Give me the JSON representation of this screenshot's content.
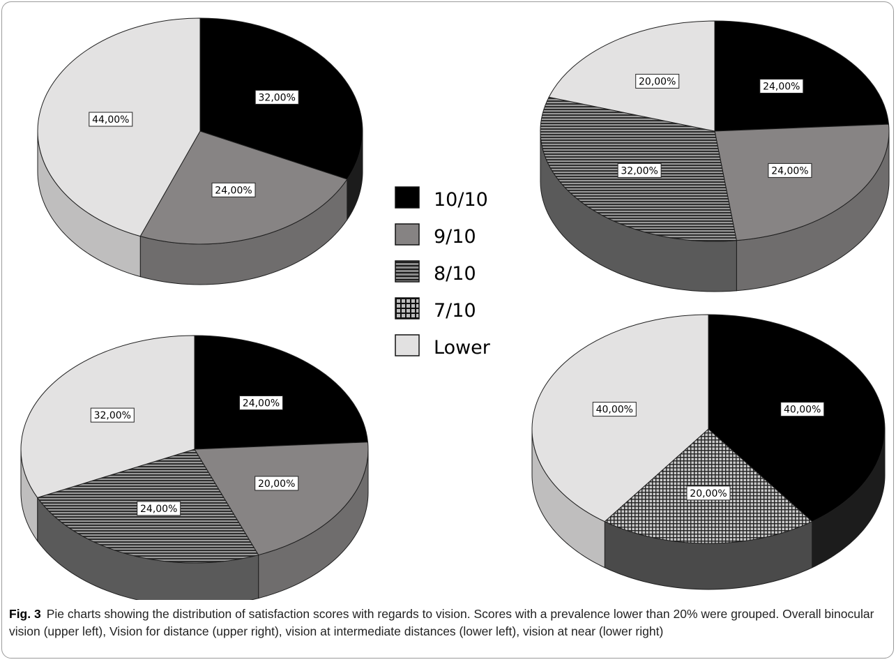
{
  "legend": {
    "items": [
      {
        "label": "10/10",
        "fill": "#000000",
        "pattern": "solid"
      },
      {
        "label": "9/10",
        "fill": "#868383",
        "pattern": "solid"
      },
      {
        "label": "8/10",
        "fill": "#6e6e6e",
        "pattern": "horizontal-stripes"
      },
      {
        "label": "7/10",
        "fill": "#5e5e5e",
        "pattern": "crosshatch"
      },
      {
        "label": "Lower",
        "fill": "#e2e1e1",
        "pattern": "solid"
      }
    ]
  },
  "chart_data": [
    {
      "type": "pie",
      "categories": [
        "10/10",
        "9/10",
        "Lower"
      ],
      "values": [
        32,
        24,
        44
      ],
      "labels": [
        "32,00%",
        "24,00%",
        "44,00%"
      ]
    },
    {
      "type": "pie",
      "categories": [
        "10/10",
        "9/10",
        "8/10",
        "Lower"
      ],
      "values": [
        24,
        24,
        32,
        20
      ],
      "labels": [
        "24,00%",
        "24,00%",
        "32,00%",
        "20,00%"
      ]
    },
    {
      "type": "pie",
      "categories": [
        "10/10",
        "9/10",
        "8/10",
        "Lower"
      ],
      "values": [
        24,
        20,
        24,
        32
      ],
      "labels": [
        "24,00%",
        "20,00%",
        "24,00%",
        "32,00%"
      ]
    },
    {
      "type": "pie",
      "categories": [
        "10/10",
        "7/10",
        "Lower"
      ],
      "values": [
        40,
        20,
        40
      ],
      "labels": [
        "40,00%",
        "20,00%",
        "40,00%"
      ]
    }
  ],
  "caption": {
    "figure_label": "Fig. 3",
    "text": "Pie charts showing the distribution of satisfaction scores with regards to vision. Scores with a prevalence lower than 20% were grouped. Overall binocular vision (upper left), Vision for distance (upper right), vision at intermediate distances (lower left), vision at near (lower right)"
  }
}
